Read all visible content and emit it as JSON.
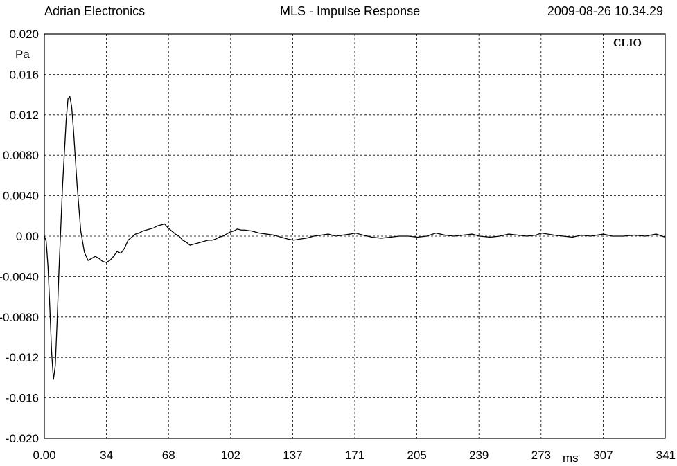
{
  "header": {
    "left": "Adrian Electronics",
    "center": "MLS - Impulse Response",
    "right": "2009-08-26 10.34.29"
  },
  "chart_data": {
    "type": "line",
    "title": "MLS - Impulse Response",
    "xlabel": "ms",
    "ylabel": "Pa",
    "brand": "CLIO",
    "xlim": [
      0,
      341
    ],
    "ylim": [
      -0.02,
      0.02
    ],
    "grid": true,
    "x_ticks": [
      "0.00",
      "34",
      "68",
      "102",
      "137",
      "171",
      "205",
      "239",
      "273",
      "307",
      "341"
    ],
    "y_ticks": [
      "0.020",
      "0.016",
      "0.012",
      "0.0080",
      "0.0040",
      "0.00",
      "-0.0040",
      "-0.0080",
      "-0.012",
      "-0.016",
      "-0.020"
    ],
    "series": [
      {
        "color": "#000000",
        "x": [
          0,
          1,
          2,
          3,
          4,
          5,
          6,
          7,
          8,
          10,
          12,
          13,
          14,
          15,
          16,
          18,
          20,
          22,
          24,
          26,
          28,
          30,
          32,
          34,
          36,
          38,
          40,
          42,
          44,
          46,
          48,
          50,
          52,
          54,
          56,
          58,
          60,
          62,
          64,
          66,
          68,
          70,
          72,
          74,
          76,
          78,
          80,
          82,
          84,
          86,
          88,
          90,
          92,
          94,
          96,
          98,
          100,
          102,
          104,
          106,
          108,
          110,
          114,
          118,
          122,
          126,
          130,
          134,
          137,
          140,
          144,
          148,
          152,
          156,
          160,
          164,
          168,
          171,
          175,
          180,
          185,
          190,
          195,
          200,
          205,
          210,
          215,
          220,
          225,
          230,
          235,
          239,
          245,
          250,
          255,
          260,
          265,
          270,
          273,
          280,
          285,
          290,
          295,
          300,
          307,
          312,
          318,
          324,
          330,
          336,
          341
        ],
        "y": [
          0.0,
          -0.0005,
          -0.003,
          -0.007,
          -0.0115,
          -0.0142,
          -0.0128,
          -0.0085,
          -0.0035,
          0.005,
          0.0115,
          0.0136,
          0.0138,
          0.0128,
          0.0105,
          0.005,
          0.0005,
          -0.0016,
          -0.0024,
          -0.0022,
          -0.002,
          -0.0022,
          -0.0025,
          -0.0026,
          -0.0024,
          -0.002,
          -0.0015,
          -0.0017,
          -0.0012,
          -0.0004,
          -0.0001,
          0.0002,
          0.0003,
          0.0005,
          0.0006,
          0.0007,
          0.0008,
          0.001,
          0.0011,
          0.0012,
          0.0008,
          0.0005,
          0.0002,
          0.0,
          -0.0004,
          -0.0006,
          -0.0009,
          -0.0008,
          -0.0007,
          -0.0006,
          -0.0005,
          -0.0004,
          -0.0004,
          -0.0003,
          -0.0001,
          0.0,
          0.0002,
          0.0004,
          0.0005,
          0.0007,
          0.0006,
          0.0006,
          0.0005,
          0.0003,
          0.0002,
          0.0001,
          -0.0001,
          -0.0003,
          -0.0004,
          -0.0003,
          -0.0002,
          0.0,
          0.0001,
          0.0002,
          0.0,
          0.0001,
          0.0002,
          0.0003,
          0.0001,
          -0.0001,
          -0.0002,
          -0.0001,
          0.0,
          0.0,
          -0.0001,
          0.0,
          0.0003,
          0.0001,
          0.0,
          0.0001,
          0.0002,
          0.0,
          -0.0001,
          0.0,
          0.0002,
          0.0001,
          0.0,
          0.0001,
          0.0003,
          0.0001,
          0.0,
          -0.0001,
          0.0001,
          0.0,
          0.0002,
          0.0,
          0.0,
          0.0001,
          0.0,
          0.0002,
          -0.0001
        ]
      }
    ]
  }
}
